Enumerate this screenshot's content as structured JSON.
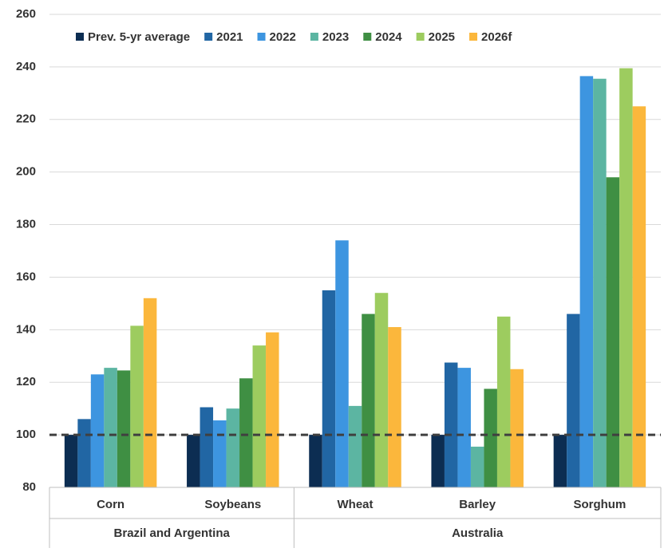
{
  "chart_data": {
    "type": "bar",
    "groups": [
      {
        "label": "Brazil and Argentina",
        "categories": [
          "Corn",
          "Soybeans"
        ]
      },
      {
        "label": "Australia",
        "categories": [
          "Wheat",
          "Barley",
          "Sorghum"
        ]
      }
    ],
    "series": [
      {
        "name": "Prev. 5-yr average",
        "color": "#0c2d52",
        "values": [
          100,
          100,
          100,
          100,
          100
        ]
      },
      {
        "name": "2021",
        "color": "#2166a4",
        "values": [
          106,
          110.5,
          155,
          127.5,
          146
        ]
      },
      {
        "name": "2022",
        "color": "#3d95e0",
        "values": [
          123,
          105.5,
          174,
          125.5,
          236.5
        ]
      },
      {
        "name": "2023",
        "color": "#5cb5a2",
        "values": [
          125.5,
          110,
          111,
          95.5,
          235.5
        ]
      },
      {
        "name": "2024",
        "color": "#3f8f43",
        "values": [
          124.5,
          121.5,
          146,
          117.5,
          198
        ]
      },
      {
        "name": "2025",
        "color": "#9dcc5f",
        "values": [
          141.5,
          134,
          154,
          145,
          239.5
        ]
      },
      {
        "name": "2026f",
        "color": "#fbb73c",
        "values": [
          152,
          139,
          141,
          125,
          225
        ]
      }
    ],
    "reference_line": 100,
    "ylim": [
      80,
      260
    ],
    "yticks": [
      80,
      100,
      120,
      140,
      160,
      180,
      200,
      220,
      240,
      260
    ],
    "grid": true,
    "legend": "top"
  }
}
